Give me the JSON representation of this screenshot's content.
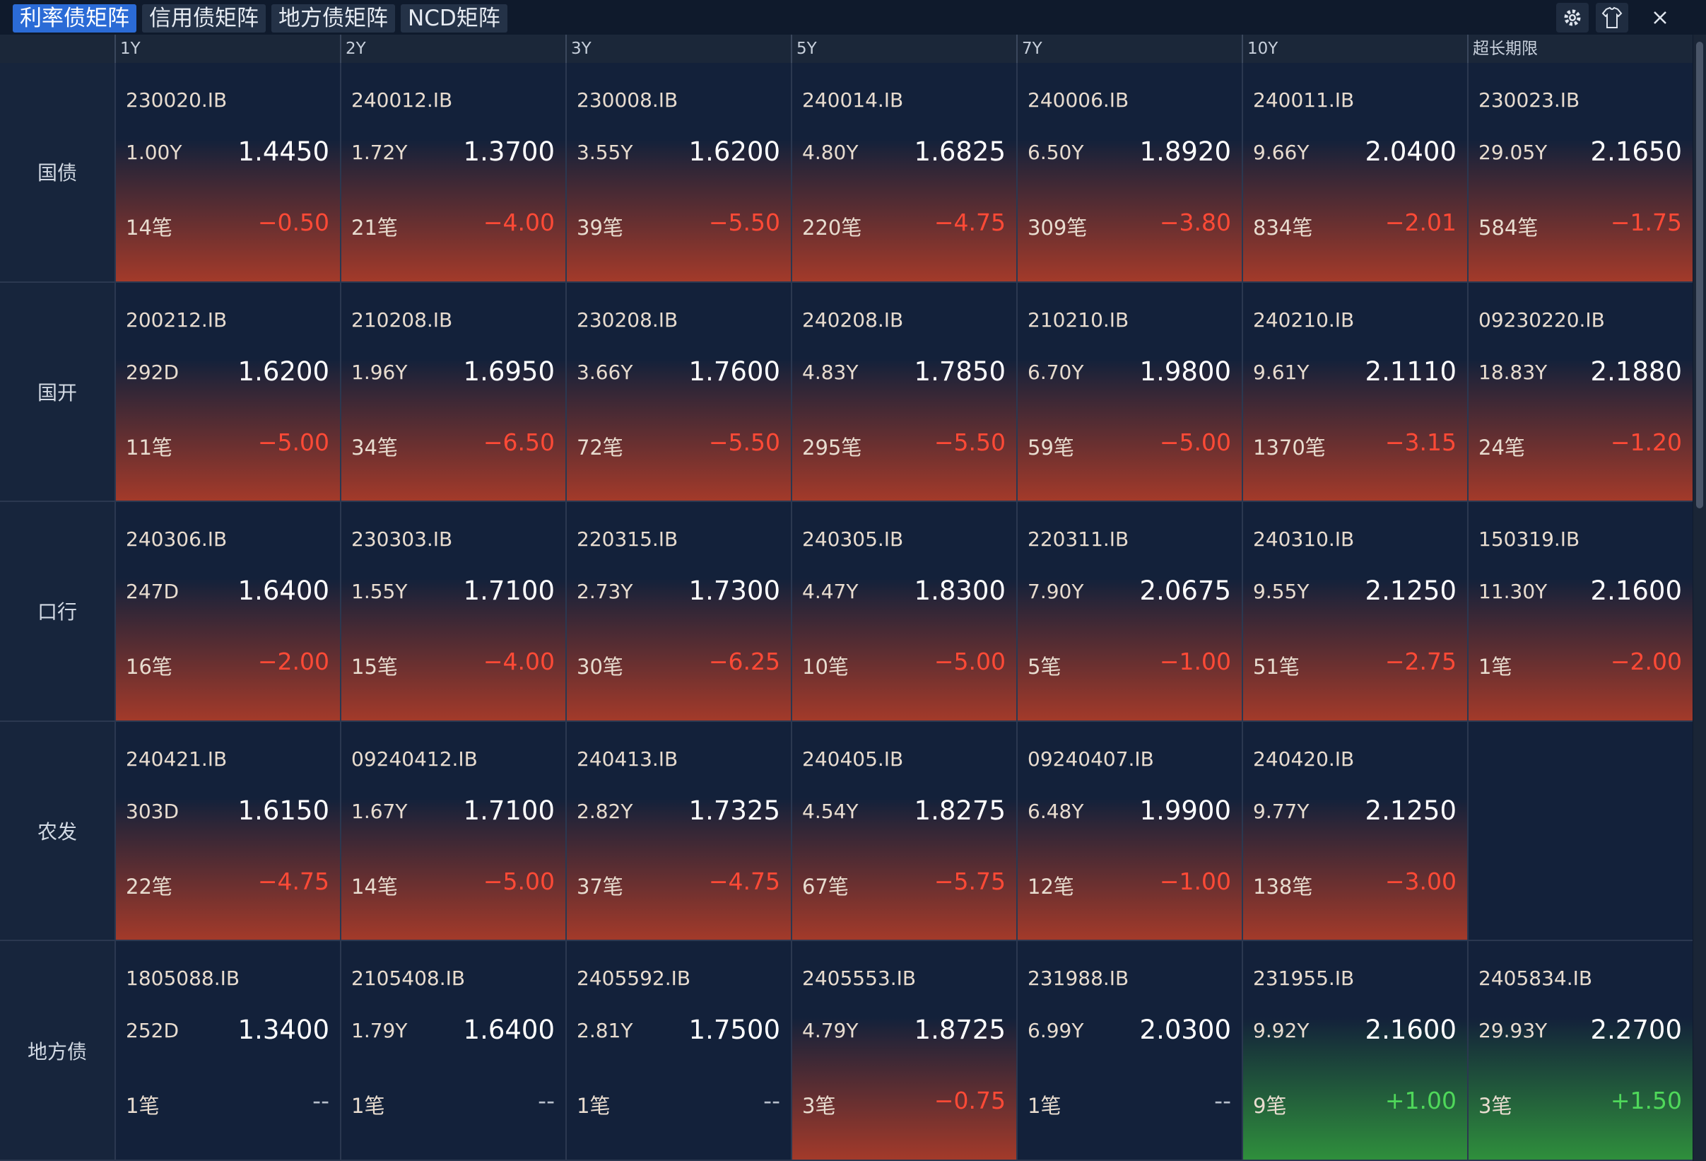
{
  "tabs": [
    "利率债矩阵",
    "信用债矩阵",
    "地方债矩阵",
    "NCD矩阵"
  ],
  "columns": [
    "1Y",
    "2Y",
    "3Y",
    "5Y",
    "7Y",
    "10Y",
    "超长期限"
  ],
  "rows": [
    {
      "label": "国债",
      "cells": [
        {
          "code": "230020.IB",
          "term": "1.00Y",
          "yield": "1.4450",
          "count": "14笔",
          "change": "−0.50"
        },
        {
          "code": "240012.IB",
          "term": "1.72Y",
          "yield": "1.3700",
          "count": "21笔",
          "change": "−4.00"
        },
        {
          "code": "230008.IB",
          "term": "3.55Y",
          "yield": "1.6200",
          "count": "39笔",
          "change": "−5.50"
        },
        {
          "code": "240014.IB",
          "term": "4.80Y",
          "yield": "1.6825",
          "count": "220笔",
          "change": "−4.75"
        },
        {
          "code": "240006.IB",
          "term": "6.50Y",
          "yield": "1.8920",
          "count": "309笔",
          "change": "−3.80"
        },
        {
          "code": "240011.IB",
          "term": "9.66Y",
          "yield": "2.0400",
          "count": "834笔",
          "change": "−2.01"
        },
        {
          "code": "230023.IB",
          "term": "29.05Y",
          "yield": "2.1650",
          "count": "584笔",
          "change": "−1.75"
        }
      ]
    },
    {
      "label": "国开",
      "cells": [
        {
          "code": "200212.IB",
          "term": "292D",
          "yield": "1.6200",
          "count": "11笔",
          "change": "−5.00"
        },
        {
          "code": "210208.IB",
          "term": "1.96Y",
          "yield": "1.6950",
          "count": "34笔",
          "change": "−6.50"
        },
        {
          "code": "230208.IB",
          "term": "3.66Y",
          "yield": "1.7600",
          "count": "72笔",
          "change": "−5.50"
        },
        {
          "code": "240208.IB",
          "term": "4.83Y",
          "yield": "1.7850",
          "count": "295笔",
          "change": "−5.50"
        },
        {
          "code": "210210.IB",
          "term": "6.70Y",
          "yield": "1.9800",
          "count": "59笔",
          "change": "−5.00"
        },
        {
          "code": "240210.IB",
          "term": "9.61Y",
          "yield": "2.1110",
          "count": "1370笔",
          "change": "−3.15"
        },
        {
          "code": "09230220.IB",
          "term": "18.83Y",
          "yield": "2.1880",
          "count": "24笔",
          "change": "−1.20"
        }
      ]
    },
    {
      "label": "口行",
      "cells": [
        {
          "code": "240306.IB",
          "term": "247D",
          "yield": "1.6400",
          "count": "16笔",
          "change": "−2.00"
        },
        {
          "code": "230303.IB",
          "term": "1.55Y",
          "yield": "1.7100",
          "count": "15笔",
          "change": "−4.00"
        },
        {
          "code": "220315.IB",
          "term": "2.73Y",
          "yield": "1.7300",
          "count": "30笔",
          "change": "−6.25"
        },
        {
          "code": "240305.IB",
          "term": "4.47Y",
          "yield": "1.8300",
          "count": "10笔",
          "change": "−5.00"
        },
        {
          "code": "220311.IB",
          "term": "7.90Y",
          "yield": "2.0675",
          "count": "5笔",
          "change": "−1.00"
        },
        {
          "code": "240310.IB",
          "term": "9.55Y",
          "yield": "2.1250",
          "count": "51笔",
          "change": "−2.75"
        },
        {
          "code": "150319.IB",
          "term": "11.30Y",
          "yield": "2.1600",
          "count": "1笔",
          "change": "−2.00"
        }
      ]
    },
    {
      "label": "农发",
      "cells": [
        {
          "code": "240421.IB",
          "term": "303D",
          "yield": "1.6150",
          "count": "22笔",
          "change": "−4.75"
        },
        {
          "code": "09240412.IB",
          "term": "1.67Y",
          "yield": "1.7100",
          "count": "14笔",
          "change": "−5.00"
        },
        {
          "code": "240413.IB",
          "term": "2.82Y",
          "yield": "1.7325",
          "count": "37笔",
          "change": "−4.75"
        },
        {
          "code": "240405.IB",
          "term": "4.54Y",
          "yield": "1.8275",
          "count": "67笔",
          "change": "−5.75"
        },
        {
          "code": "09240407.IB",
          "term": "6.48Y",
          "yield": "1.9900",
          "count": "12笔",
          "change": "−1.00"
        },
        {
          "code": "240420.IB",
          "term": "9.77Y",
          "yield": "2.1250",
          "count": "138笔",
          "change": "−3.00"
        },
        null
      ]
    },
    {
      "label": "地方债",
      "cells": [
        {
          "code": "1805088.IB",
          "term": "252D",
          "yield": "1.3400",
          "count": "1笔",
          "change": "--"
        },
        {
          "code": "2105408.IB",
          "term": "1.79Y",
          "yield": "1.6400",
          "count": "1笔",
          "change": "--"
        },
        {
          "code": "2405592.IB",
          "term": "2.81Y",
          "yield": "1.7500",
          "count": "1笔",
          "change": "--"
        },
        {
          "code": "2405553.IB",
          "term": "4.79Y",
          "yield": "1.8725",
          "count": "3笔",
          "change": "−0.75"
        },
        {
          "code": "231988.IB",
          "term": "6.99Y",
          "yield": "2.0300",
          "count": "1笔",
          "change": "--"
        },
        {
          "code": "231955.IB",
          "term": "9.92Y",
          "yield": "2.1600",
          "count": "9笔",
          "change": "+1.00"
        },
        {
          "code": "2405834.IB",
          "term": "29.93Y",
          "yield": "2.2700",
          "count": "3笔",
          "change": "+1.50"
        }
      ]
    }
  ]
}
